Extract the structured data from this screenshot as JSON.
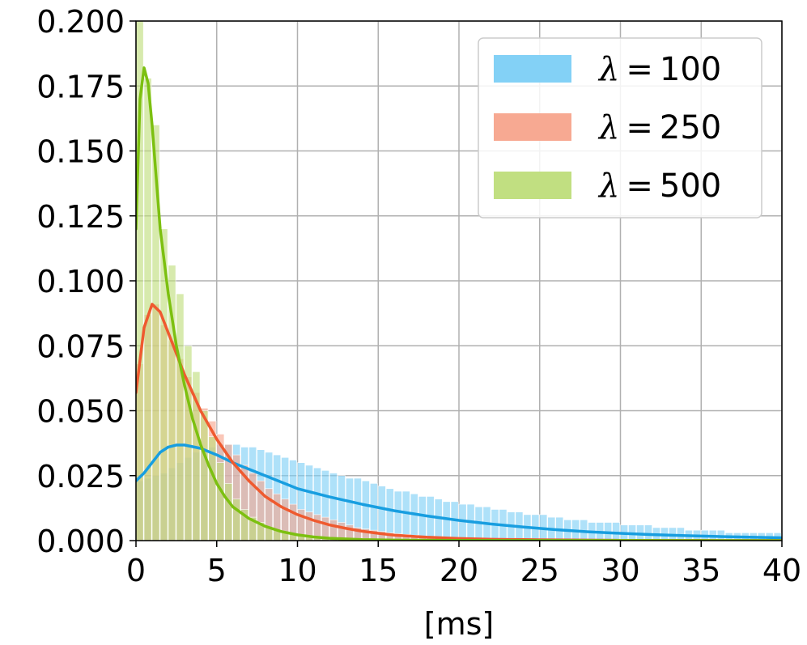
{
  "chart_data": {
    "type": "histogram",
    "title": "",
    "xlabel": "[ms]",
    "ylabel": "",
    "xlim": [
      0,
      40
    ],
    "ylim": [
      0,
      0.2
    ],
    "x_ticks": [
      "0",
      "5",
      "10",
      "15",
      "20",
      "25",
      "30",
      "35",
      "40"
    ],
    "y_ticks": [
      "0.000",
      "0.025",
      "0.050",
      "0.075",
      "0.100",
      "0.125",
      "0.150",
      "0.175",
      "0.200"
    ],
    "grid": true,
    "legend_position": "top-right",
    "bin_width": 0.5,
    "series": [
      {
        "name": "λ = 100",
        "lambda_symbol": "λ",
        "equals": "=",
        "lambda_value": "100",
        "fill_color": "#7ccff5",
        "line_color": "#189ee0",
        "bars": [
          0.023,
          0.024,
          0.025,
          0.026,
          0.028,
          0.03,
          0.032,
          0.034,
          0.035,
          0.036,
          0.037,
          0.037,
          0.037,
          0.036,
          0.036,
          0.035,
          0.034,
          0.033,
          0.032,
          0.031,
          0.03,
          0.029,
          0.028,
          0.027,
          0.026,
          0.025,
          0.024,
          0.024,
          0.023,
          0.022,
          0.021,
          0.02,
          0.019,
          0.019,
          0.018,
          0.017,
          0.017,
          0.016,
          0.015,
          0.015,
          0.014,
          0.014,
          0.013,
          0.013,
          0.012,
          0.012,
          0.011,
          0.011,
          0.01,
          0.01,
          0.01,
          0.009,
          0.009,
          0.008,
          0.008,
          0.008,
          0.007,
          0.007,
          0.007,
          0.007,
          0.006,
          0.006,
          0.006,
          0.006,
          0.005,
          0.005,
          0.005,
          0.005,
          0.004,
          0.004,
          0.004,
          0.004,
          0.004,
          0.003,
          0.003,
          0.003,
          0.003,
          0.003,
          0.003,
          0.003
        ],
        "curve_x": [
          0,
          0.5,
          1,
          1.5,
          2,
          2.5,
          3,
          4,
          5,
          6,
          7,
          8,
          9,
          10,
          12,
          14,
          16,
          18,
          20,
          22,
          24,
          26,
          28,
          30,
          32,
          34,
          36,
          38,
          40
        ],
        "curve_y": [
          0.023,
          0.026,
          0.03,
          0.034,
          0.036,
          0.0368,
          0.0368,
          0.0355,
          0.033,
          0.03,
          0.0275,
          0.025,
          0.0225,
          0.02,
          0.0168,
          0.014,
          0.0115,
          0.0095,
          0.0078,
          0.0064,
          0.0052,
          0.0042,
          0.0034,
          0.0028,
          0.0023,
          0.0019,
          0.0016,
          0.0013,
          0.0011
        ]
      },
      {
        "name": "λ = 250",
        "lambda_symbol": "λ",
        "equals": "=",
        "lambda_value": "250",
        "fill_color": "#f7a48c",
        "line_color": "#ef5a2f",
        "bars": [
          0.068,
          0.087,
          0.091,
          0.083,
          0.077,
          0.07,
          0.063,
          0.057,
          0.051,
          0.046,
          0.041,
          0.037,
          0.033,
          0.029,
          0.026,
          0.023,
          0.02,
          0.018,
          0.016,
          0.014,
          0.012,
          0.011,
          0.01,
          0.009,
          0.008,
          0.007,
          0.006,
          0.005,
          0.0045,
          0.004,
          0.0035,
          0.003,
          0.0027,
          0.0024,
          0.0021,
          0.0018,
          0.0016,
          0.0014,
          0.0012,
          0.0011,
          0.001,
          0.0009,
          0.0008,
          0.0007,
          0.0006,
          0.0005,
          0.0004,
          0.0004,
          0.0003,
          0.0003
        ],
        "curve_x": [
          0,
          0.5,
          1,
          1.5,
          2,
          2.5,
          3,
          3.5,
          4,
          5,
          6,
          7,
          8,
          9,
          10,
          11,
          12,
          13,
          14,
          15,
          16,
          18,
          20,
          22,
          25,
          30,
          35,
          40
        ],
        "curve_y": [
          0.057,
          0.082,
          0.091,
          0.088,
          0.08,
          0.072,
          0.064,
          0.057,
          0.05,
          0.039,
          0.03,
          0.023,
          0.017,
          0.013,
          0.01,
          0.0078,
          0.006,
          0.0047,
          0.0036,
          0.0028,
          0.0021,
          0.0013,
          0.0008,
          0.0005,
          0.0003,
          0.0001,
          5e-05,
          2e-05
        ]
      },
      {
        "name": "λ = 500",
        "lambda_symbol": "λ",
        "equals": "=",
        "lambda_value": "500",
        "fill_color": "#bedd7a",
        "line_color": "#7cc010",
        "bars": [
          0.2,
          0.178,
          0.16,
          0.12,
          0.106,
          0.095,
          0.075,
          0.065,
          0.05,
          0.04,
          0.03,
          0.022,
          0.016,
          0.012,
          0.009,
          0.007,
          0.005,
          0.004,
          0.003,
          0.0025,
          0.002,
          0.0015,
          0.0012,
          0.001,
          0.0008,
          0.0006,
          0.0005,
          0.0004,
          0.0003,
          0.0002
        ],
        "curve_x": [
          0,
          0.25,
          0.5,
          0.75,
          1,
          1.25,
          1.5,
          2,
          2.5,
          3,
          3.5,
          4,
          4.5,
          5,
          5.5,
          6,
          7,
          8,
          9,
          10,
          11,
          12,
          14,
          16,
          20,
          40
        ],
        "curve_y": [
          0.12,
          0.17,
          0.182,
          0.176,
          0.16,
          0.14,
          0.12,
          0.095,
          0.075,
          0.06,
          0.047,
          0.037,
          0.029,
          0.022,
          0.017,
          0.013,
          0.0085,
          0.0055,
          0.0035,
          0.0022,
          0.0014,
          0.0009,
          0.0004,
          0.0002,
          5e-05,
          0.0
        ]
      }
    ]
  }
}
